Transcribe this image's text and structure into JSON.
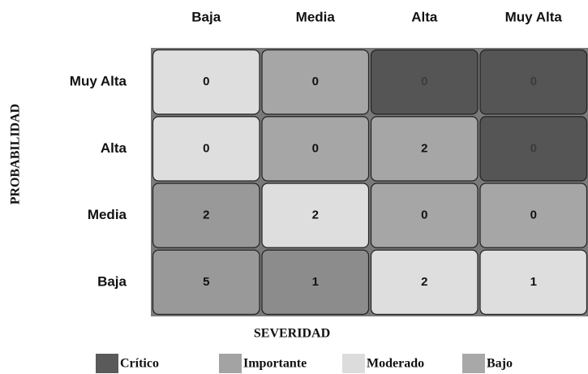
{
  "chart_data": {
    "type": "heatmap",
    "xlabel": "SEVERIDAD",
    "ylabel": "PROBABILIDAD",
    "columns": [
      "Baja",
      "Media",
      "Alta",
      "Muy Alta"
    ],
    "rows": [
      "Muy Alta",
      "Alta",
      "Media",
      "Baja"
    ],
    "values": [
      [
        0,
        0,
        0,
        0
      ],
      [
        0,
        0,
        2,
        0
      ],
      [
        2,
        2,
        0,
        0
      ],
      [
        5,
        1,
        2,
        1
      ]
    ],
    "cell_colors": [
      [
        "#dedede",
        "#a6a6a6",
        "#555555",
        "#555555"
      ],
      [
        "#dedede",
        "#a6a6a6",
        "#a6a6a6",
        "#555555"
      ],
      [
        "#999999",
        "#dedede",
        "#a6a6a6",
        "#a6a6a6"
      ],
      [
        "#999999",
        "#8c8c8c",
        "#dedede",
        "#dedede"
      ]
    ],
    "legend": [
      {
        "name": "Crítico",
        "color": "#5a5a5a"
      },
      {
        "name": "Importante",
        "color": "#a3a3a3"
      },
      {
        "name": "Moderado",
        "color": "#dcdcdc"
      },
      {
        "name": "Bajo",
        "color": "#a8a8a8"
      }
    ]
  }
}
